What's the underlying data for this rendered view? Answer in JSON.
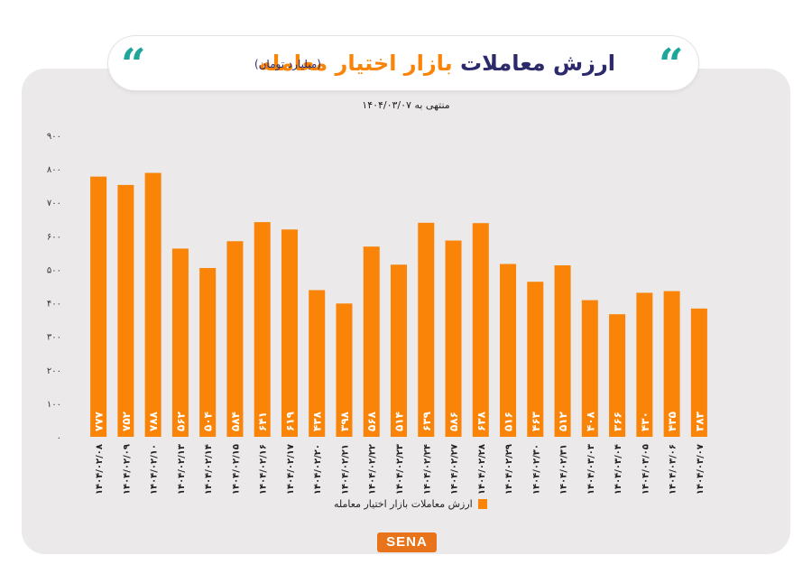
{
  "header": {
    "title_part1": "ارزش معاملات",
    "title_part2": "بازار اختیار معامله",
    "unit": "(میلیارد تومان)",
    "subtitle": "منتهی به ۱۴۰۴/۰۳/۰۷",
    "quote_glyph": "“"
  },
  "legend": {
    "label": "ارزش معاملات بازار اختیار معامله"
  },
  "logo": {
    "text": "SENA"
  },
  "colors": {
    "bar": "#f98407",
    "title_dark": "#2c2a6b",
    "title_accent": "#f98407",
    "quote": "#1fa69a",
    "panel": "#ebe9ea"
  },
  "chart_data": {
    "type": "bar",
    "categories": [
      "۱۴۰۴/۰۲/۰۸",
      "۱۴۰۴/۰۲/۰۹",
      "۱۴۰۴/۰۲/۱۰",
      "۱۴۰۴/۰۲/۱۳",
      "۱۴۰۴/۰۲/۱۴",
      "۱۴۰۴/۰۲/۱۵",
      "۱۴۰۴/۰۲/۱۶",
      "۱۴۰۴/۰۲/۱۷",
      "۱۴۰۴/۰۲/۲۰",
      "۱۴۰۴/۰۲/۲۱",
      "۱۴۰۴/۰۲/۲۲",
      "۱۴۰۴/۰۲/۲۳",
      "۱۴۰۴/۰۲/۲۴",
      "۱۴۰۴/۰۲/۲۷",
      "۱۴۰۴/۰۲/۲۸",
      "۱۴۰۴/۰۲/۲۹",
      "۱۴۰۴/۰۲/۳۰",
      "۱۴۰۴/۰۲/۳۱",
      "۱۴۰۴/۰۳/۰۳",
      "۱۴۰۴/۰۳/۰۴",
      "۱۴۰۴/۰۳/۰۵",
      "۱۴۰۴/۰۳/۰۶",
      "۱۴۰۴/۰۳/۰۷"
    ],
    "values": [
      777,
      752,
      788,
      562,
      504,
      584,
      641,
      619,
      438,
      398,
      568,
      514,
      639,
      586,
      638,
      516,
      463,
      512,
      408,
      366,
      430,
      435,
      383
    ],
    "value_labels": [
      "۷۷۷",
      "۷۵۲",
      "۷۸۸",
      "۵۶۲",
      "۵۰۴",
      "۵۸۴",
      "۶۴۱",
      "۶۱۹",
      "۴۳۸",
      "۳۹۸",
      "۵۶۸",
      "۵۱۴",
      "۶۳۹",
      "۵۸۶",
      "۶۳۸",
      "۵۱۶",
      "۴۶۳",
      "۵۱۲",
      "۴۰۸",
      "۳۶۶",
      "۴۳۰",
      "۴۳۵",
      "۳۸۳"
    ],
    "ylim": [
      0,
      900
    ],
    "y_ticks": [
      0,
      100,
      200,
      300,
      400,
      500,
      600,
      700,
      800,
      900
    ],
    "y_tick_labels": [
      "۰",
      "۱۰۰",
      "۲۰۰",
      "۳۰۰",
      "۴۰۰",
      "۵۰۰",
      "۶۰۰",
      "۷۰۰",
      "۸۰۰",
      "۹۰۰"
    ],
    "grid": false,
    "legend_position": "bottom"
  }
}
